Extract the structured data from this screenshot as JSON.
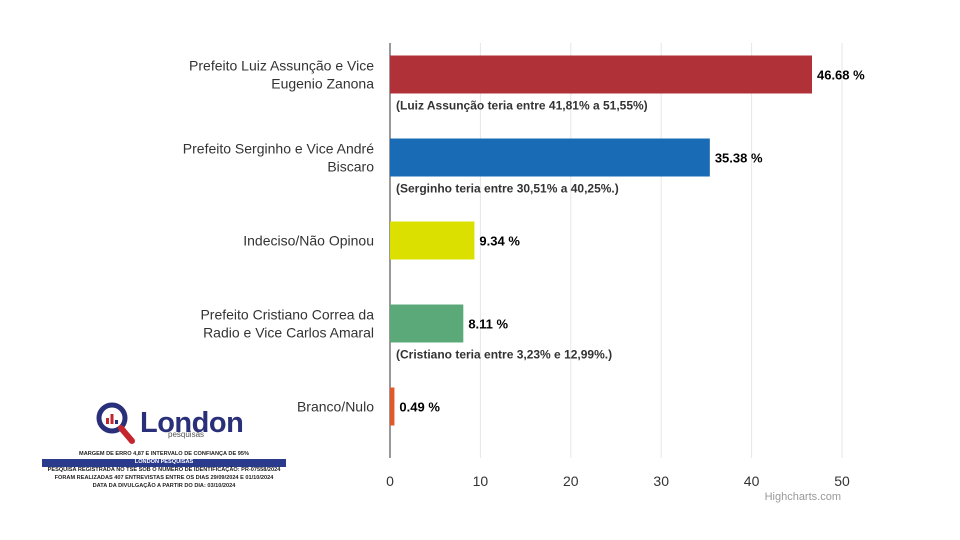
{
  "chart_data": {
    "type": "bar",
    "orientation": "horizontal",
    "categories": [
      [
        "Prefeito Luiz Assunção e Vice",
        "Eugenio Zanona"
      ],
      [
        "Prefeito Serginho e Vice André",
        "Biscaro"
      ],
      [
        "Indeciso/Não Opinou"
      ],
      [
        "Prefeito Cristiano Correa da",
        "Radio e Vice Carlos Amaral"
      ],
      [
        "Branco/Nulo"
      ]
    ],
    "values": [
      46.68,
      35.38,
      9.34,
      8.11,
      0.49
    ],
    "value_labels": [
      "46.68 %",
      "35.38 %",
      "9.34 %",
      "8.11 %",
      "0.49 %"
    ],
    "colors": [
      "#b03138",
      "#1a6bb5",
      "#dce000",
      "#5ba878",
      "#e0592b"
    ],
    "notes": [
      "(Luiz Assunção teria entre 41,81% a 51,55%)",
      "(Serginho teria entre 30,51% a 40,25%.)",
      "",
      "(Cristiano teria entre 3,23% e 12,99%.)",
      ""
    ],
    "xlim": [
      0,
      50
    ],
    "ticks": [
      0,
      10,
      20,
      30,
      40,
      50
    ],
    "grid": true,
    "credit": "Highcharts.com"
  },
  "logo": {
    "name": "London",
    "sub": "pesquisas"
  },
  "footer": {
    "line1": "MARGEM DE ERRO 4,87 E INTERVALO DE CONFIANÇA DE 95%",
    "line2": "LONDON PESQUISAS",
    "line3": "PESQUISA REGISTRADA NO TSE SOB O NUMERO DE IDENTIFICAÇÃO: PR-07558/2024",
    "line4": "FORAM REALIZADAS 407 ENTREVISTAS ENTRE OS DIAS 29/09/2024 E 01/10/2024",
    "line5": "DATA DA DIVULGAÇÃO A PARTIR DO DIA: 03/10/2024"
  }
}
